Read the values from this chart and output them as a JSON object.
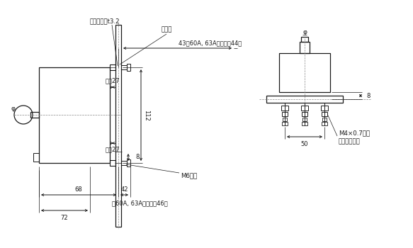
{
  "bg_color": "#ffffff",
  "line_color": "#1a1a1a",
  "fig_width": 5.83,
  "fig_height": 3.5,
  "dpi": 100,
  "annotations": {
    "insulation_tube": "絶縁管",
    "mount_plate": "取付板最大t3.2",
    "dim_43": "43（60A, 63Aの場合は44）",
    "dim_112": "112",
    "dim_8_mid": "8",
    "dim_27_top": "最小27",
    "dim_27_bot": "最小27",
    "m6_label": "M6ねじ",
    "dim_68": "68",
    "dim_42": "42",
    "dim_note_46": "（60A, 63Aの場合は46）",
    "dim_72": "72",
    "dim_8_right": "8",
    "dim_50": "50",
    "m4_label": "M4×0.7ねじ",
    "m4_label2": "遮断器取付用",
    "phi_left": "φ",
    "phi_right": "φ"
  }
}
